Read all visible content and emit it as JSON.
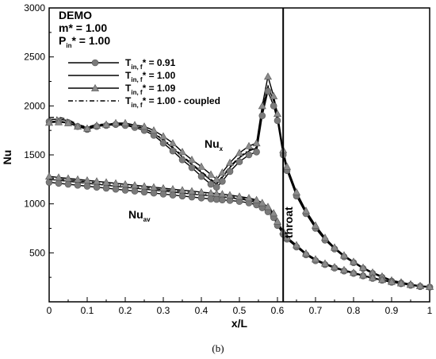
{
  "chart_data": {
    "type": "line",
    "xlabel": "x/L",
    "ylabel": "Nu",
    "xlim": [
      0,
      1
    ],
    "ylim": [
      0,
      3000
    ],
    "xticks": [
      "0",
      "0.1",
      "0.2",
      "0.3",
      "0.4",
      "0.5",
      "0.6",
      "0.7",
      "0.8",
      "0.9",
      "1"
    ],
    "yticks": [
      "500",
      "1000",
      "1500",
      "2000",
      "2500",
      "3000"
    ],
    "ytick_values": [
      500,
      1000,
      1500,
      2000,
      2500,
      3000
    ],
    "grid": false,
    "legend_position": "top-left",
    "info_box": {
      "line1": "DEMO",
      "line2": "m* = 1.00",
      "line3_main": "P",
      "line3_sub": "in",
      "line3_rest": "* = 1.00"
    },
    "legend": [
      {
        "main": "T",
        "sub": "in, f",
        "rest": "* = 0.91",
        "marker": "circle",
        "dash": "solid"
      },
      {
        "main": "T",
        "sub": "in, f",
        "rest": "* = 1.00",
        "marker": "none",
        "dash": "solid"
      },
      {
        "main": "T",
        "sub": "in, f",
        "rest": "* = 1.09",
        "marker": "triangle",
        "dash": "solid"
      },
      {
        "main": "T",
        "sub": "in, f",
        "rest": "* = 1.00 - coupled",
        "marker": "none",
        "dash": "dashdot"
      }
    ],
    "annotations": {
      "nux_main": "Nu",
      "nux_sub": "x",
      "nuav_main": "Nu",
      "nuav_sub": "av",
      "throat_label": "throat",
      "throat_x": 0.615
    },
    "caption": "(b)",
    "x": [
      0,
      0.025,
      0.05,
      0.075,
      0.1,
      0.125,
      0.15,
      0.175,
      0.2,
      0.225,
      0.25,
      0.275,
      0.3,
      0.325,
      0.35,
      0.375,
      0.4,
      0.425,
      0.44,
      0.455,
      0.475,
      0.5,
      0.525,
      0.545,
      0.56,
      0.575,
      0.59,
      0.6,
      0.615,
      0.625,
      0.65,
      0.675,
      0.7,
      0.725,
      0.75,
      0.775,
      0.8,
      0.825,
      0.85,
      0.875,
      0.9,
      0.925,
      0.95,
      0.975,
      1.0
    ],
    "series": [
      {
        "group": "local",
        "marker": "circle",
        "values": [
          1840,
          1845,
          1830,
          1790,
          1760,
          1790,
          1800,
          1810,
          1800,
          1780,
          1750,
          1700,
          1620,
          1540,
          1450,
          1370,
          1280,
          1200,
          1170,
          1230,
          1330,
          1430,
          1500,
          1530,
          1900,
          2150,
          2000,
          1850,
          1500,
          1340,
          1080,
          900,
          750,
          630,
          540,
          460,
          400,
          340,
          290,
          250,
          210,
          190,
          170,
          155,
          150
        ]
      },
      {
        "group": "local",
        "marker": "none",
        "values": [
          1860,
          1865,
          1850,
          1800,
          1780,
          1805,
          1810,
          1820,
          1810,
          1790,
          1770,
          1720,
          1650,
          1570,
          1480,
          1400,
          1320,
          1240,
          1200,
          1270,
          1370,
          1470,
          1540,
          1570,
          1950,
          2200,
          2050,
          1880,
          1520,
          1360,
          1100,
          910,
          760,
          640,
          545,
          465,
          405,
          345,
          295,
          255,
          215,
          195,
          175,
          158,
          152
        ]
      },
      {
        "group": "local",
        "marker": "triangle",
        "values": [
          1830,
          1835,
          1825,
          1790,
          1770,
          1800,
          1810,
          1825,
          1825,
          1805,
          1790,
          1750,
          1690,
          1620,
          1530,
          1450,
          1380,
          1300,
          1250,
          1320,
          1420,
          1520,
          1590,
          1620,
          2000,
          2300,
          2100,
          1920,
          1550,
          1380,
          1120,
          930,
          780,
          655,
          555,
          475,
          410,
          350,
          300,
          260,
          220,
          200,
          180,
          162,
          155
        ]
      },
      {
        "group": "local",
        "marker": "none",
        "dash": "dashdot",
        "values": [
          1880,
          1885,
          1860,
          1810,
          1785,
          1810,
          1815,
          1822,
          1815,
          1795,
          1775,
          1725,
          1660,
          1580,
          1490,
          1410,
          1330,
          1250,
          1210,
          1280,
          1380,
          1480,
          1550,
          1580,
          1960,
          2210,
          2060,
          1890,
          1525,
          1365,
          1105,
          915,
          765,
          645,
          550,
          470,
          408,
          348,
          298,
          258,
          218,
          198,
          178,
          160,
          153
        ]
      },
      {
        "group": "average",
        "marker": "circle",
        "values": [
          1220,
          1210,
          1200,
          1190,
          1180,
          1170,
          1160,
          1150,
          1140,
          1130,
          1120,
          1110,
          1100,
          1090,
          1080,
          1070,
          1060,
          1050,
          1045,
          1040,
          1035,
          1025,
          1010,
          990,
          960,
          920,
          860,
          780,
          690,
          640,
          560,
          480,
          420,
          380,
          345,
          315,
          290,
          265,
          240,
          220,
          200,
          185,
          170,
          158,
          150
        ]
      },
      {
        "group": "average",
        "marker": "none",
        "values": [
          1250,
          1240,
          1230,
          1220,
          1210,
          1200,
          1190,
          1180,
          1170,
          1160,
          1150,
          1140,
          1130,
          1120,
          1110,
          1100,
          1090,
          1080,
          1075,
          1070,
          1062,
          1050,
          1035,
          1015,
          985,
          945,
          880,
          800,
          705,
          650,
          570,
          488,
          428,
          386,
          350,
          320,
          294,
          268,
          243,
          222,
          202,
          187,
          172,
          160,
          152
        ]
      },
      {
        "group": "average",
        "marker": "triangle",
        "values": [
          1280,
          1270,
          1260,
          1250,
          1240,
          1230,
          1220,
          1210,
          1200,
          1190,
          1180,
          1170,
          1160,
          1150,
          1140,
          1130,
          1120,
          1110,
          1105,
          1100,
          1090,
          1075,
          1060,
          1040,
          1010,
          970,
          905,
          820,
          720,
          660,
          580,
          495,
          435,
          392,
          355,
          325,
          298,
          272,
          246,
          225,
          205,
          190,
          175,
          162,
          155
        ]
      },
      {
        "group": "average",
        "marker": "none",
        "dash": "dashdot",
        "values": [
          1265,
          1255,
          1245,
          1235,
          1225,
          1215,
          1205,
          1195,
          1185,
          1175,
          1165,
          1155,
          1145,
          1135,
          1125,
          1115,
          1105,
          1095,
          1090,
          1085,
          1076,
          1062,
          1047,
          1027,
          997,
          957,
          892,
          810,
          712,
          655,
          575,
          491,
          431,
          389,
          352,
          322,
          296,
          270,
          245,
          223,
          203,
          188,
          173,
          161,
          153
        ]
      }
    ]
  }
}
